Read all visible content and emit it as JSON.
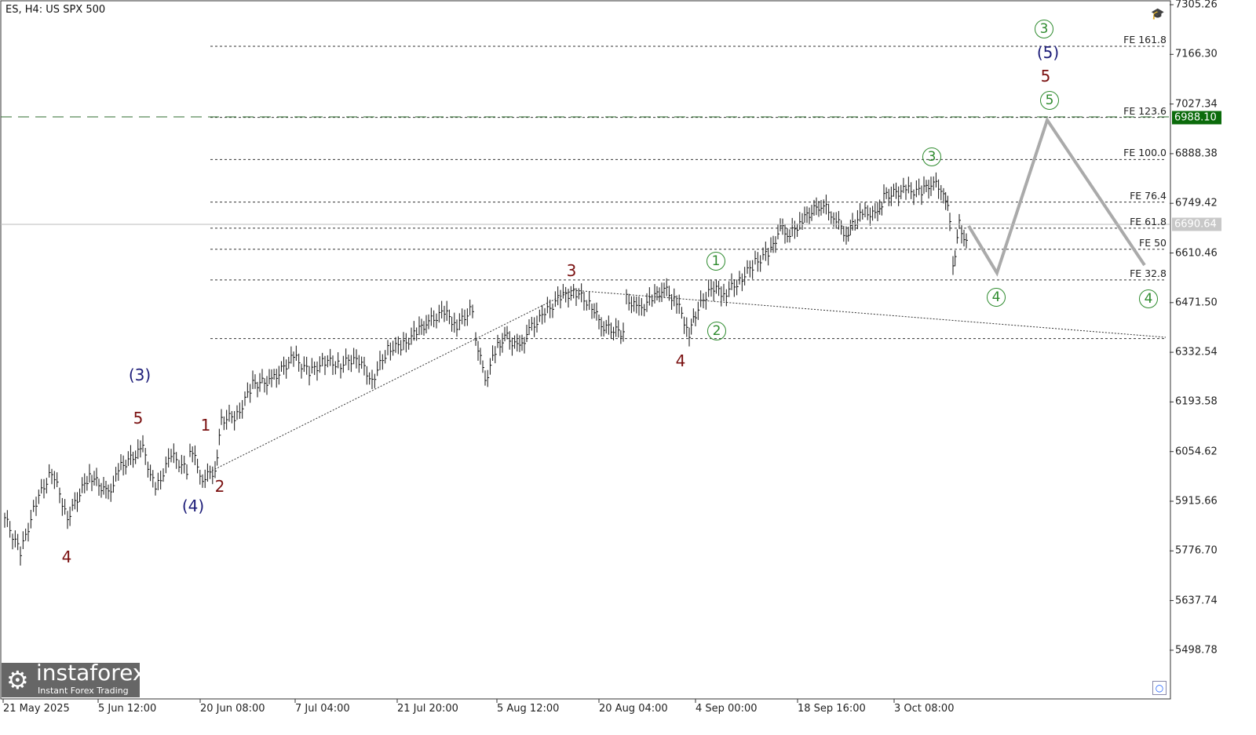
{
  "header": {
    "title": "ES, H4:  US SPX 500"
  },
  "logo": {
    "name": "instaforex",
    "tagline": "Instant Forex Trading"
  },
  "chart_data": {
    "type": "line",
    "title": "ES, H4: US SPX 500",
    "ylim": [
      5359.82,
      7305.26
    ],
    "yticks": [
      "7305.26",
      "7166.30",
      "7027.34",
      "6888.38",
      "6749.42",
      "6610.46",
      "6471.50",
      "6332.54",
      "6193.58",
      "6054.62",
      "5915.66",
      "5776.70",
      "5637.74",
      "5498.78"
    ],
    "xticks": [
      "21 May 2025",
      "5 Jun 12:00",
      "20 Jun 08:00",
      "7 Jul 04:00",
      "21 Jul 20:00",
      "5 Aug 12:00",
      "20 Aug 04:00",
      "4 Sep 00:00",
      "18 Sep 16:00",
      "3 Oct 08:00"
    ],
    "price_series": {
      "x_bars": [
        1,
        6,
        11,
        16,
        21,
        28,
        34,
        38,
        45,
        49,
        54,
        59,
        60,
        64,
        68,
        70,
        75,
        80,
        86,
        93,
        98,
        103,
        108,
        113,
        118,
        123,
        128,
        133,
        136,
        141,
        145,
        150,
        151,
        154,
        158,
        161,
        165,
        168,
        173,
        178,
        183,
        188,
        191,
        198,
        199,
        203,
        208,
        211,
        215,
        219,
        221,
        226,
        230,
        235,
        240,
        245,
        248,
        251,
        255,
        261,
        265,
        269,
        271,
        275,
        279,
        281,
        288,
        293,
        296,
        300,
        302,
        303,
        305,
        308
      ],
      "close": [
        5869.6,
        5770.8,
        5913.5,
        6001.2,
        5869.6,
        5990.3,
        5935.4,
        6012.3,
        6062.7,
        5946.4,
        6045.2,
        6001.2,
        6067.1,
        5979.3,
        6001.2,
        6143.9,
        6155,
        6242.7,
        6253.7,
        6319.6,
        6275.7,
        6308.6,
        6297.6,
        6319.6,
        6253.7,
        6341.5,
        6352.5,
        6396.4,
        6418.4,
        6444.7,
        6407.4,
        6457.9,
        6374.5,
        6253.7,
        6352.5,
        6374.5,
        6341.5,
        6396.4,
        6440.3,
        6488.6,
        6499.6,
        6462.3,
        6407.4,
        6385.5,
        6484.3,
        6451.3,
        6488.6,
        6510.6,
        6473.3,
        6385.5,
        6440.3,
        6517.2,
        6495.2,
        6532.6,
        6583,
        6616,
        6681.8,
        6659.9,
        6703.8,
        6747.7,
        6714.8,
        6659.9,
        6692.8,
        6725.7,
        6714.8,
        6769.6,
        6787.2,
        6780.6,
        6809.2,
        6787.2,
        6703.8,
        6572.1,
        6692.8,
        6616
      ]
    },
    "projection": {
      "x_bars": [
        308,
        317,
        333,
        364
      ],
      "price": [
        6686,
        6554.5,
        6982.6,
        6576.5
      ]
    },
    "fib_levels": [
      {
        "label": "FE 161.8",
        "price": 7189
      },
      {
        "label": "FE 123.6",
        "price": 6990
      },
      {
        "label": "FE 100.0",
        "price": 6872
      },
      {
        "label": "FE 76.4",
        "price": 6753
      },
      {
        "label": "FE 61.8",
        "price": 6680
      },
      {
        "label": "FE 50",
        "price": 6621
      },
      {
        "label": "FE 32.8",
        "price": 6535
      },
      {
        "label": "",
        "price": 6371
      }
    ],
    "current_price": "6690.64",
    "target_price": "6988.10",
    "wave_labels": [
      "(3)",
      "5",
      "1",
      "2",
      "(4)",
      "4",
      "3",
      "4",
      "1",
      "2",
      "3",
      "4",
      "5",
      "5",
      "(5)",
      "3",
      "4"
    ]
  },
  "colors": {
    "red": "#7a1010",
    "navy": "#1c1c78",
    "green": "#2e8b2e",
    "target": "#0b6b0b"
  }
}
